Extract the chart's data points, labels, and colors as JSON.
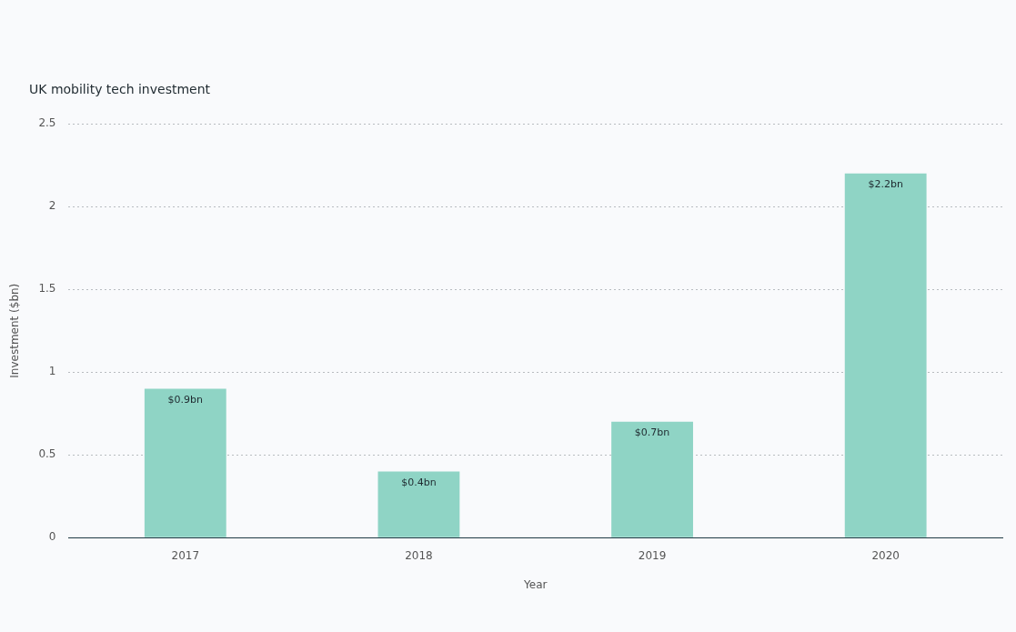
{
  "chart_data": {
    "type": "bar",
    "title": "UK mobility tech investment",
    "xlabel": "Year",
    "ylabel": "Investment ($bn)",
    "categories": [
      "2017",
      "2018",
      "2019",
      "2020"
    ],
    "values": [
      0.9,
      0.4,
      0.7,
      2.2
    ],
    "value_labels": [
      "$0.9bn",
      "$0.4bn",
      "$0.7bn",
      "$2.2bn"
    ],
    "color": "#8fd4c5",
    "ylim": [
      0,
      2.5
    ],
    "yticks": [
      0,
      0.5,
      1,
      1.5,
      2,
      2.5
    ],
    "grid": "y",
    "legend": false
  }
}
